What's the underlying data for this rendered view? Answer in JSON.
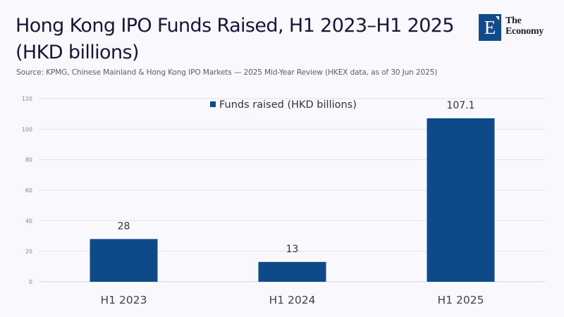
{
  "header": {
    "title": "Hong Kong IPO Funds Raised, H1 2023–H1 2025 (HKD billions)",
    "source": "Source: KPMG, Chinese Mainland & Hong Kong IPO Markets — 2025 Mid-Year Review (HKEX data, as of 30 Jun 2025)"
  },
  "logo": {
    "mark": "E",
    "line1": "The",
    "line2": "Economy",
    "color": "#114b8c"
  },
  "chart_data": {
    "type": "bar",
    "title": "Hong Kong IPO Funds Raised, H1 2023–H1 2025 (HKD billions)",
    "xlabel": "",
    "ylabel": "",
    "categories": [
      "H1 2023",
      "H1 2024",
      "H1 2025"
    ],
    "series": [
      {
        "name": "Funds raised (HKD billions)",
        "values": [
          28,
          13,
          107.1
        ],
        "color": "#0d4a87"
      }
    ],
    "data_labels": [
      "28",
      "13",
      "107.1"
    ],
    "ylim": [
      0,
      120
    ],
    "yticks": [
      0,
      20,
      40,
      60,
      80,
      100,
      120
    ],
    "grid": true,
    "legend": {
      "position": "top-center",
      "entries": [
        "Funds raised (HKD billions)"
      ]
    }
  }
}
